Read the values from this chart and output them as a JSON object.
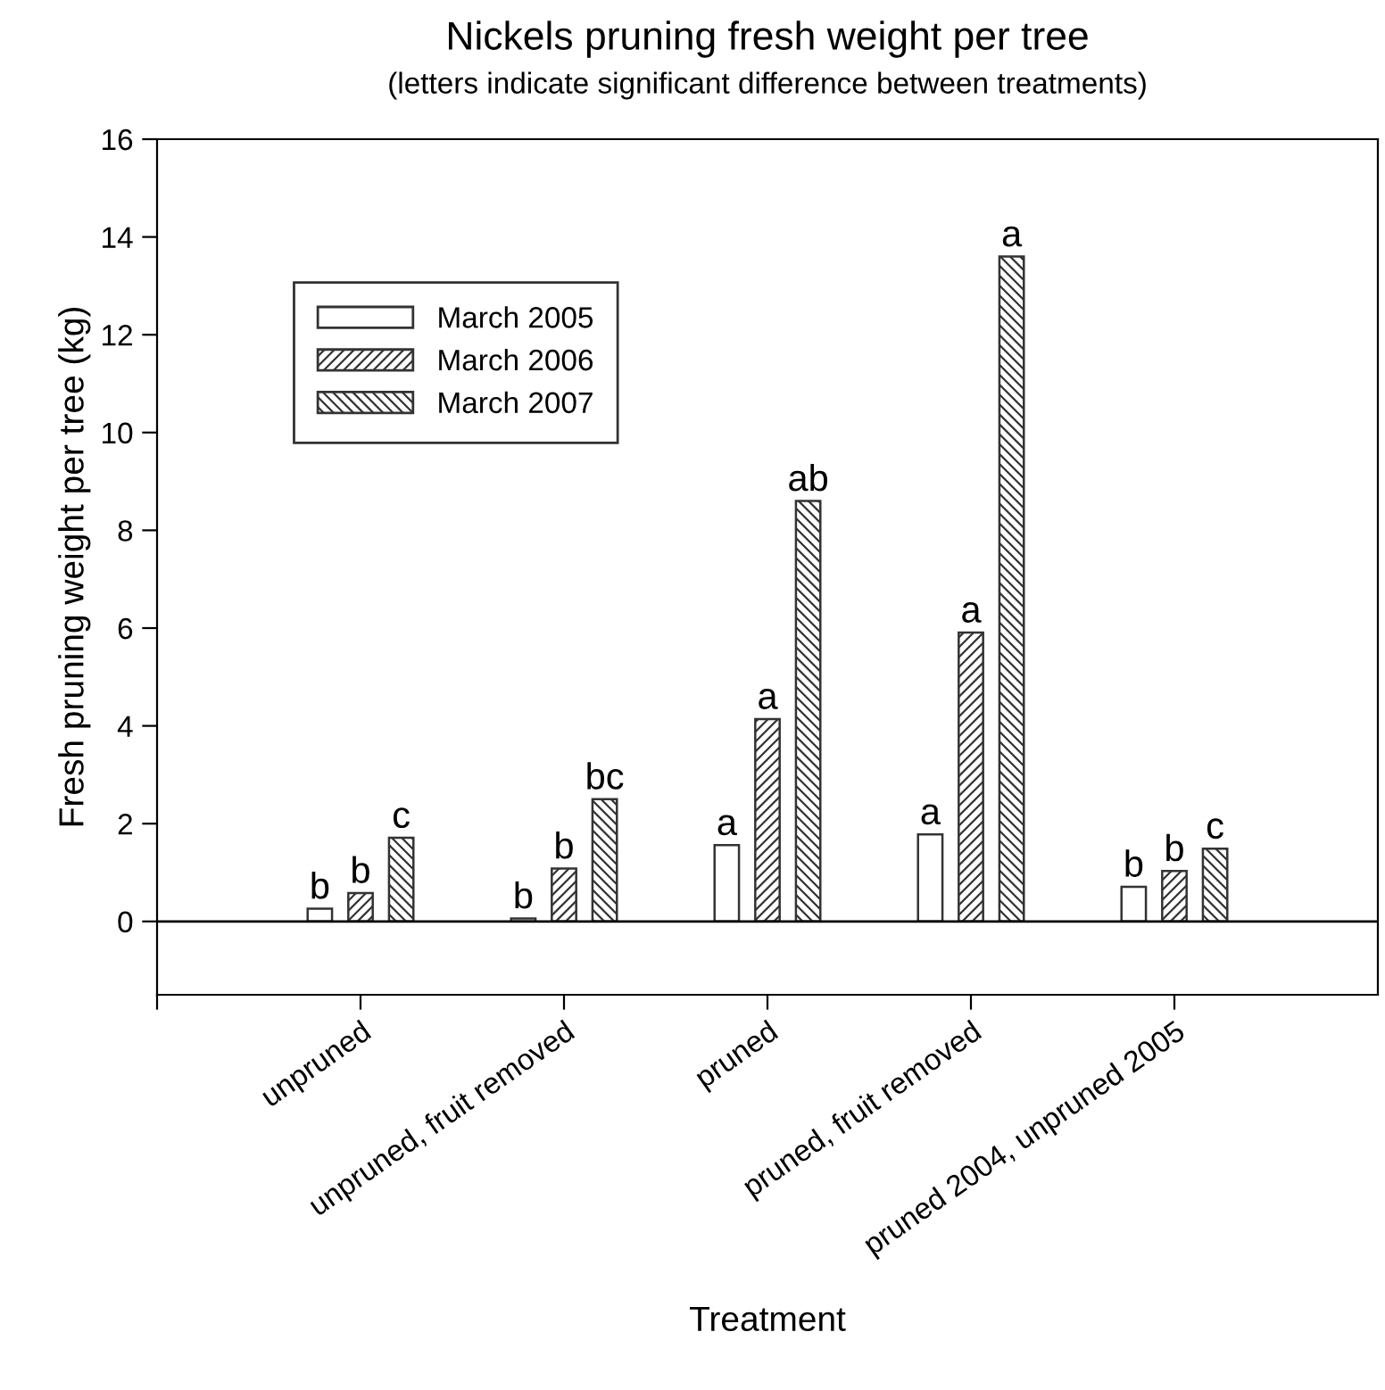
{
  "chart_data": {
    "type": "bar",
    "title": "Nickels pruning fresh weight per tree",
    "subtitle": "(letters indicate significant difference between treatments)",
    "xlabel": "Treatment",
    "ylabel": "Fresh pruning weight per tree (kg)",
    "categories": [
      "unpruned",
      "unpruned, fruit removed",
      "pruned",
      "pruned, fruit removed",
      "pruned 2004, unpruned 2005"
    ],
    "series": [
      {
        "name": "March 2005",
        "color": "#ffffff",
        "values": [
          0.26,
          0.06,
          1.56,
          1.78,
          0.71
        ],
        "value_labels": [
          "b",
          "b",
          "a",
          "a",
          "b"
        ]
      },
      {
        "name": "March 2006",
        "color": "#333333",
        "values": [
          0.58,
          1.08,
          4.14,
          5.91,
          1.03
        ],
        "value_labels": [
          "b",
          "b",
          "a",
          "a",
          "b"
        ]
      },
      {
        "name": "March 2007",
        "color": "#333333",
        "values": [
          1.71,
          2.5,
          8.6,
          13.6,
          1.49
        ],
        "value_labels": [
          "c",
          "bc",
          "ab",
          "a",
          "c"
        ]
      }
    ],
    "ylim": [
      -1.5,
      16
    ],
    "yticks": [
      0,
      2,
      4,
      6,
      8,
      10,
      12,
      14,
      16
    ],
    "ref_lines": [
      {
        "axis": "y",
        "value": 0
      }
    ],
    "grid": false,
    "legend": "top left"
  }
}
